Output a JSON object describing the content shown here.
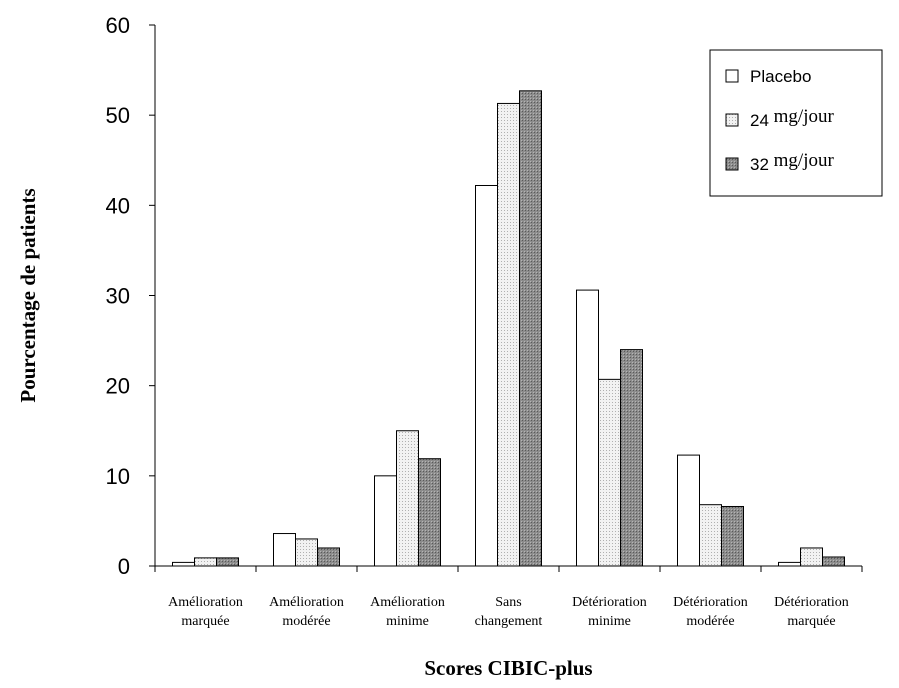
{
  "chart_data": {
    "type": "bar",
    "title": "",
    "xlabel": "Scores CIBIC-plus",
    "ylabel": "Pourcentage de patients",
    "ylim": [
      0,
      60
    ],
    "yticks": [
      0,
      10,
      20,
      30,
      40,
      50,
      60
    ],
    "grid": false,
    "legend_position": "top-right",
    "categories": [
      [
        "Amélioration",
        "marquée"
      ],
      [
        "Amélioration",
        "modérée"
      ],
      [
        "Amélioration",
        "minime"
      ],
      [
        "Sans",
        "changement"
      ],
      [
        "Détérioration",
        "minime"
      ],
      [
        "Détérioration",
        "modérée"
      ],
      [
        "Détérioration",
        "marquée"
      ]
    ],
    "series": [
      {
        "name": "Placebo",
        "legend_parts": [
          "Placebo"
        ],
        "values": [
          0.4,
          3.6,
          10.0,
          42.2,
          30.6,
          12.3,
          0.4
        ],
        "fill": "#ffffff",
        "pattern": "none"
      },
      {
        "name": "24 mg/jour",
        "legend_parts": [
          "24",
          "mg/jour"
        ],
        "values": [
          0.9,
          3.0,
          15.0,
          51.3,
          20.7,
          6.8,
          2.0
        ],
        "fill": "#e8e8e8",
        "pattern": "dots"
      },
      {
        "name": "32 mg/jour",
        "legend_parts": [
          "32",
          "mg/jour"
        ],
        "values": [
          0.9,
          2.0,
          11.9,
          52.7,
          24.0,
          6.6,
          1.0
        ],
        "fill": "#8a8a8a",
        "pattern": "dark-grid"
      }
    ]
  }
}
